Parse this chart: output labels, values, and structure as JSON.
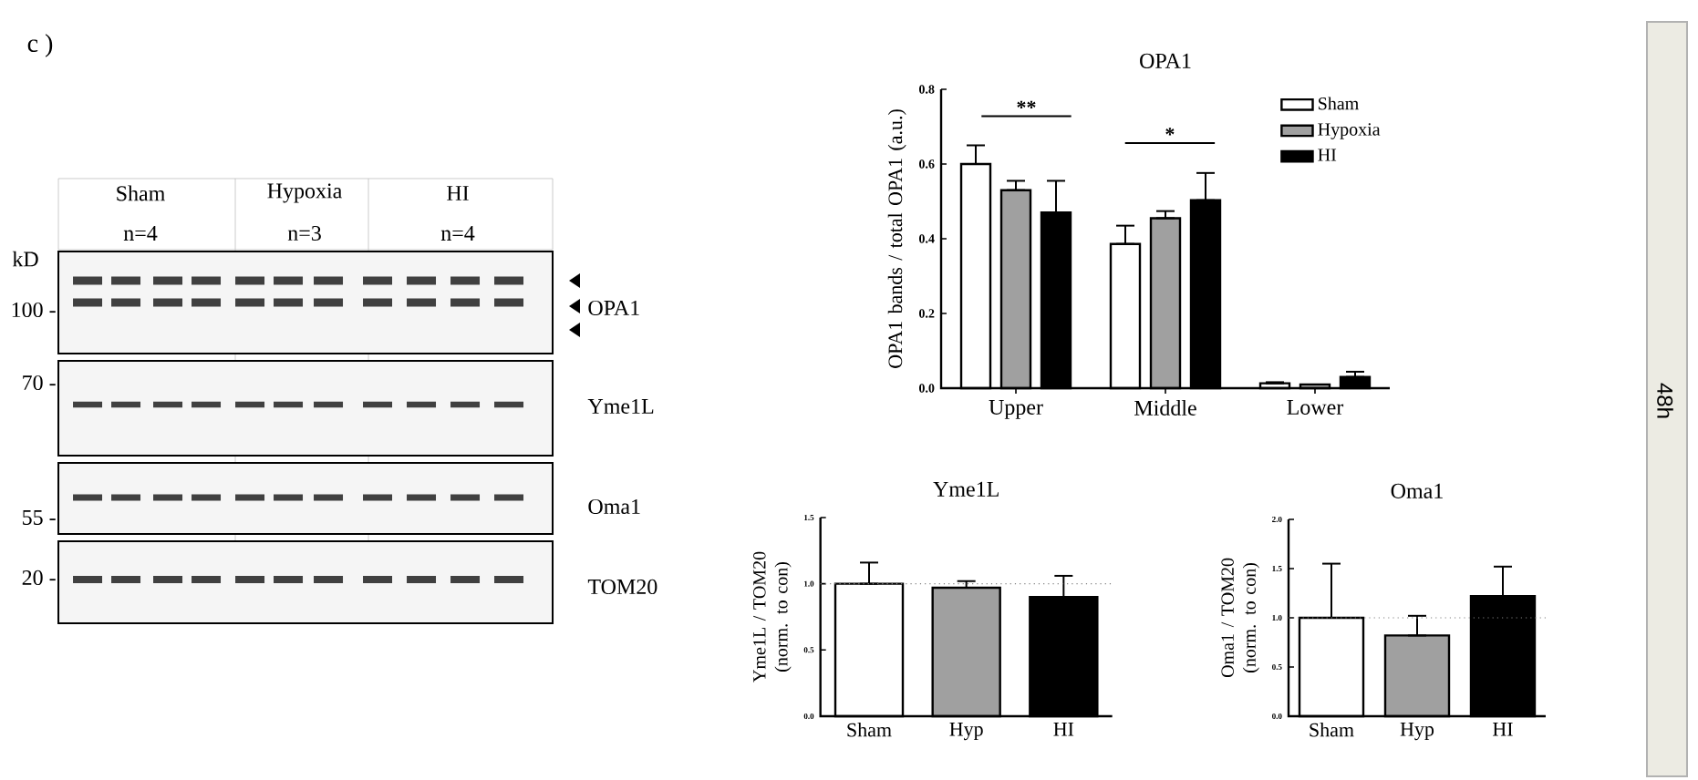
{
  "chart_data": [
    {
      "type": "other",
      "annotations": [
        "c )",
        "kD",
        "100 -",
        "70 -",
        "55 -",
        "20 -",
        "Sham",
        "n=4",
        "Hypoxia",
        "n=3",
        "HI",
        "n=4",
        "OPA1",
        "Yme1L",
        "Oma1",
        "TOM20",
        "48h"
      ]
    },
    {
      "type": "bar",
      "title": "OPA1",
      "ylabel": "OPA1 bands / total OPA1 (a.u.)",
      "categories": [
        "Upper",
        "Middle",
        "Lower"
      ],
      "series": [
        {
          "name": "Sham",
          "color": "#ffffff",
          "values": [
            0.6,
            0.386,
            0.013
          ],
          "errors": [
            [
              0.6,
              0.65
            ],
            [
              0.386,
              0.435
            ],
            [
              0.013,
              0.016
            ]
          ]
        },
        {
          "name": "Hypoxia",
          "color": "#a0a0a0",
          "values": [
            0.53,
            0.455,
            0.01
          ],
          "errors": [
            [
              0.53,
              0.555
            ],
            [
              0.455,
              0.474
            ],
            null
          ]
        },
        {
          "name": "HI",
          "color": "#000000",
          "values": [
            0.47,
            0.503,
            0.03
          ],
          "errors": [
            [
              0.47,
              0.555
            ],
            [
              0.503,
              0.576
            ],
            [
              0.03,
              0.044
            ]
          ]
        }
      ],
      "ylim": [
        0,
        0.8
      ],
      "yticks": [
        {
          "value": 0,
          "label": "0.0"
        },
        {
          "value": 0.2,
          "label": "0.2"
        },
        {
          "value": 0.4,
          "label": "0.4"
        },
        {
          "value": 0.6,
          "label": "0.6"
        },
        {
          "value": 0.8,
          "label": "0.8"
        }
      ],
      "annotations": [
        "**",
        "*"
      ],
      "legend": "top right",
      "grid": false
    },
    {
      "type": "bar",
      "title": "Yme1L",
      "ylabel": "Yme1L / TOM20 (norm. to con)",
      "categories": [
        "Sham",
        "Hyp",
        "HI"
      ],
      "values": [
        1.0,
        0.97,
        0.9
      ],
      "colors": [
        "#ffffff",
        "#a0a0a0",
        "#000000"
      ],
      "errors": [
        [
          1.0,
          1.16
        ],
        [
          0.97,
          1.02
        ],
        [
          0.9,
          1.06
        ]
      ],
      "ylim": [
        0,
        1.5
      ],
      "yticks": [
        {
          "value": 0,
          "label": "0.0"
        },
        {
          "value": 0.5,
          "label": "0.5"
        },
        {
          "value": 1,
          "label": "1.0"
        },
        {
          "value": 1.5,
          "label": "1.5"
        }
      ],
      "ref_lines": [
        {
          "axis": "y",
          "value": 1,
          "line_style": "dotted",
          "color": "#808080"
        }
      ],
      "grid": false
    },
    {
      "type": "bar",
      "title": "Oma1",
      "ylabel": "Oma1 / TOM20 (norm. to con)",
      "categories": [
        "Sham",
        "Hyp",
        "HI"
      ],
      "values": [
        1.0,
        0.82,
        1.22
      ],
      "colors": [
        "#ffffff",
        "#a0a0a0",
        "#000000"
      ],
      "errors": [
        [
          1.0,
          1.55
        ],
        [
          0.82,
          1.02
        ],
        [
          1.22,
          1.52
        ]
      ],
      "ylim": [
        0,
        2.0
      ],
      "yticks": [
        {
          "value": 0,
          "label": "0.0"
        },
        {
          "value": 0.5,
          "label": "0.5"
        },
        {
          "value": 1,
          "label": "1.0"
        },
        {
          "value": 1.5,
          "label": "1.5"
        },
        {
          "value": 2,
          "label": "2.0"
        }
      ],
      "ref_lines": [
        {
          "axis": "y",
          "value": 1,
          "line_style": "dotted",
          "color": "#808080"
        }
      ],
      "grid": false
    }
  ]
}
